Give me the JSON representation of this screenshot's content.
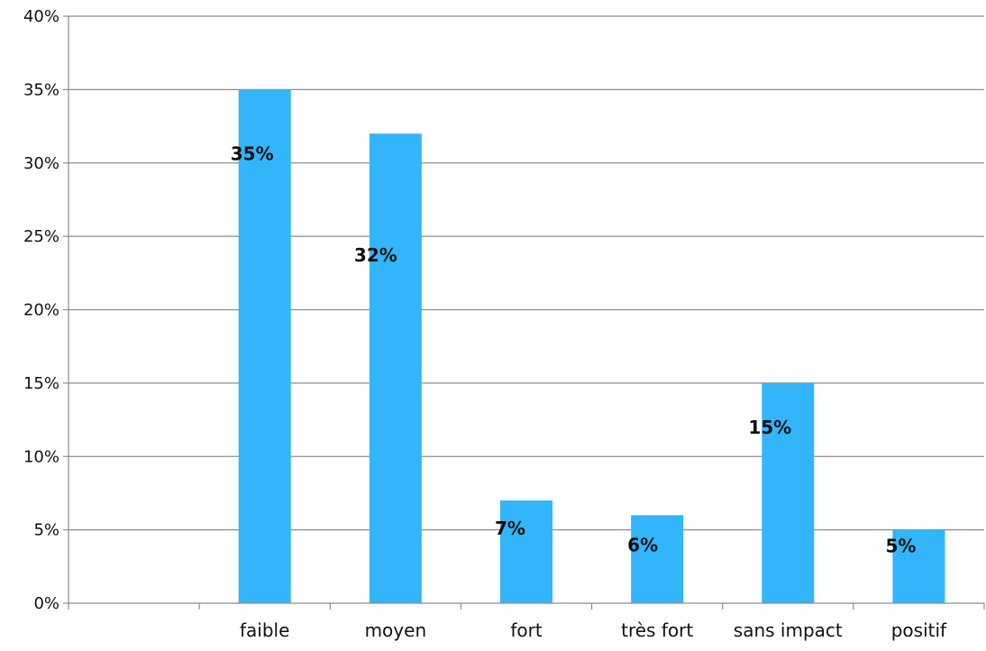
{
  "chart_data": {
    "type": "bar",
    "categories": [
      "",
      "faible",
      "moyen",
      "fort",
      "très fort",
      "sans impact",
      "positif"
    ],
    "values": [
      0,
      35,
      32,
      7,
      6,
      15,
      5
    ],
    "data_labels": [
      "",
      "35%",
      "32%",
      "7%",
      "6%",
      "15%",
      "5%"
    ],
    "y_ticks": [
      "0%",
      "5%",
      "10%",
      "15%",
      "20%",
      "25%",
      "30%",
      "35%",
      "40%"
    ],
    "ylim": [
      0,
      40
    ],
    "y_unit": "%",
    "grid": true,
    "bar_color": "#33b5fb",
    "label_color": "#111111",
    "axis_color": "#8c8c8c"
  }
}
